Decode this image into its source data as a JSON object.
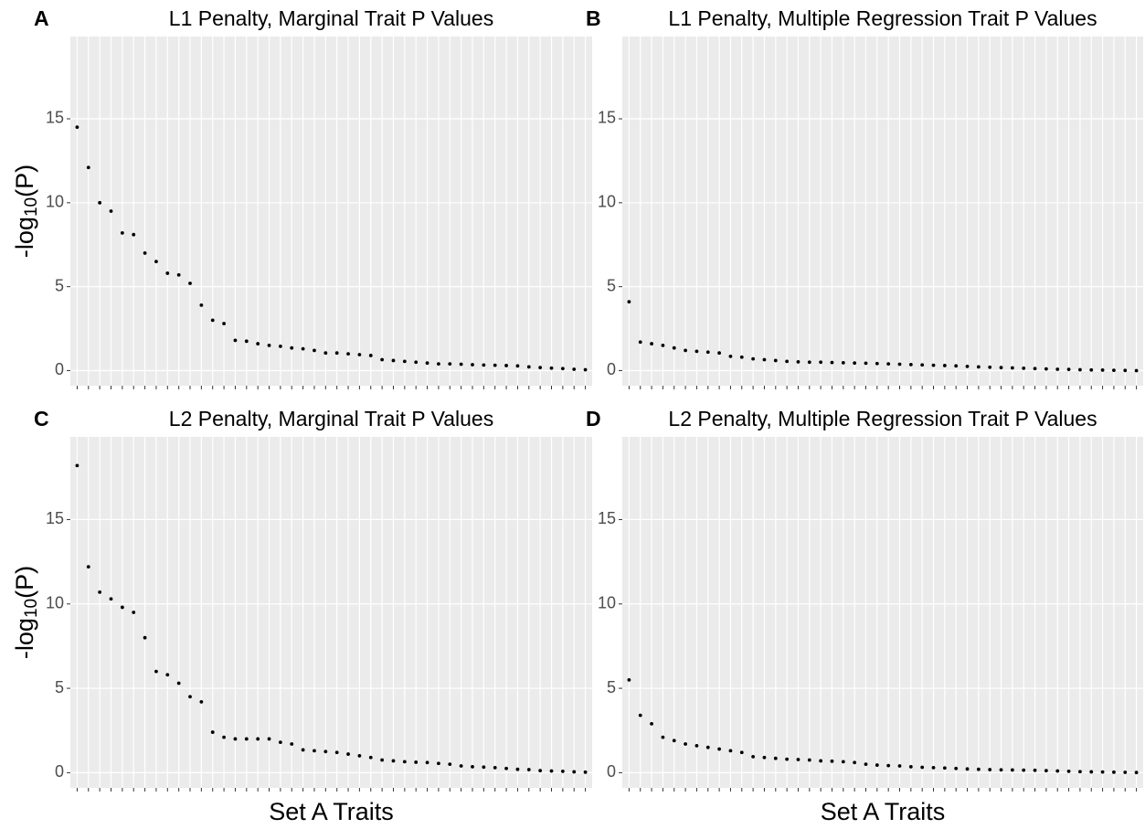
{
  "chart_data": [
    {
      "type": "scatter",
      "tag": "A",
      "title": "L1 Penalty, Marginal Trait P Values",
      "y_label": "-log10(P)",
      "categories": [
        null,
        null,
        null,
        null,
        null,
        null,
        null,
        null,
        null,
        null,
        null,
        null,
        null,
        null,
        null,
        null,
        null,
        null,
        null,
        null,
        null,
        null,
        null,
        null,
        null,
        null,
        null,
        null,
        null,
        null,
        null,
        null,
        null,
        null,
        null,
        null,
        null,
        null,
        null,
        null,
        null,
        null,
        null,
        null,
        null,
        null
      ],
      "values": [
        14.5,
        12.1,
        10.0,
        9.5,
        8.2,
        8.1,
        7.0,
        6.5,
        5.8,
        5.7,
        5.2,
        3.9,
        3.0,
        2.8,
        1.8,
        1.75,
        1.6,
        1.5,
        1.45,
        1.35,
        1.3,
        1.2,
        1.05,
        1.05,
        1.0,
        0.95,
        0.9,
        0.65,
        0.6,
        0.55,
        0.5,
        0.45,
        0.4,
        0.4,
        0.38,
        0.35,
        0.33,
        0.32,
        0.3,
        0.28,
        0.22,
        0.18,
        0.15,
        0.12,
        0.08,
        0.05
      ],
      "color": "#000000",
      "ylim": [
        -0.9,
        19.9
      ],
      "yticks": [
        0,
        5,
        10,
        15
      ],
      "grid": true
    },
    {
      "type": "scatter",
      "tag": "B",
      "title": "L1 Penalty, Multiple Regression Trait P Values",
      "categories": [
        null,
        null,
        null,
        null,
        null,
        null,
        null,
        null,
        null,
        null,
        null,
        null,
        null,
        null,
        null,
        null,
        null,
        null,
        null,
        null,
        null,
        null,
        null,
        null,
        null,
        null,
        null,
        null,
        null,
        null,
        null,
        null,
        null,
        null,
        null,
        null,
        null,
        null,
        null,
        null,
        null,
        null,
        null,
        null,
        null,
        null
      ],
      "values": [
        4.1,
        1.7,
        1.6,
        1.5,
        1.35,
        1.2,
        1.15,
        1.1,
        1.05,
        0.85,
        0.8,
        0.7,
        0.65,
        0.6,
        0.55,
        0.52,
        0.5,
        0.5,
        0.48,
        0.47,
        0.45,
        0.44,
        0.42,
        0.4,
        0.38,
        0.36,
        0.34,
        0.32,
        0.3,
        0.28,
        0.25,
        0.22,
        0.2,
        0.18,
        0.16,
        0.14,
        0.12,
        0.1,
        0.08,
        0.07,
        0.05,
        0.04,
        0.03,
        0.02,
        0.01,
        0.0
      ],
      "color": "#000000",
      "ylim": [
        -0.9,
        19.9
      ],
      "yticks": [
        0,
        5,
        10,
        15
      ],
      "grid": true
    },
    {
      "type": "scatter",
      "tag": "C",
      "title": "L2 Penalty, Marginal Trait P Values",
      "y_label": "-log10(P)",
      "x_label": "Set A Traits",
      "categories": [
        null,
        null,
        null,
        null,
        null,
        null,
        null,
        null,
        null,
        null,
        null,
        null,
        null,
        null,
        null,
        null,
        null,
        null,
        null,
        null,
        null,
        null,
        null,
        null,
        null,
        null,
        null,
        null,
        null,
        null,
        null,
        null,
        null,
        null,
        null,
        null,
        null,
        null,
        null,
        null,
        null,
        null,
        null,
        null,
        null,
        null
      ],
      "values": [
        18.2,
        12.2,
        10.7,
        10.3,
        9.8,
        9.5,
        8.0,
        6.0,
        5.8,
        5.3,
        4.5,
        4.2,
        2.4,
        2.1,
        2.0,
        2.0,
        2.0,
        2.0,
        1.8,
        1.7,
        1.35,
        1.3,
        1.25,
        1.2,
        1.1,
        1.0,
        0.9,
        0.75,
        0.7,
        0.65,
        0.62,
        0.6,
        0.55,
        0.5,
        0.4,
        0.35,
        0.33,
        0.3,
        0.25,
        0.2,
        0.18,
        0.12,
        0.1,
        0.08,
        0.05,
        0.03
      ],
      "color": "#000000",
      "ylim": [
        -0.9,
        19.9
      ],
      "yticks": [
        0,
        5,
        10,
        15
      ],
      "grid": true
    },
    {
      "type": "scatter",
      "tag": "D",
      "title": "L2 Penalty, Multiple Regression Trait P Values",
      "x_label": "Set A Traits",
      "categories": [
        null,
        null,
        null,
        null,
        null,
        null,
        null,
        null,
        null,
        null,
        null,
        null,
        null,
        null,
        null,
        null,
        null,
        null,
        null,
        null,
        null,
        null,
        null,
        null,
        null,
        null,
        null,
        null,
        null,
        null,
        null,
        null,
        null,
        null,
        null,
        null,
        null,
        null,
        null,
        null,
        null,
        null,
        null,
        null,
        null,
        null
      ],
      "values": [
        5.5,
        3.4,
        2.9,
        2.1,
        1.9,
        1.7,
        1.6,
        1.5,
        1.4,
        1.3,
        1.2,
        0.95,
        0.9,
        0.85,
        0.8,
        0.78,
        0.75,
        0.7,
        0.68,
        0.65,
        0.6,
        0.5,
        0.45,
        0.42,
        0.4,
        0.35,
        0.32,
        0.3,
        0.28,
        0.25,
        0.22,
        0.2,
        0.18,
        0.17,
        0.16,
        0.15,
        0.14,
        0.12,
        0.1,
        0.08,
        0.06,
        0.05,
        0.04,
        0.03,
        0.02,
        0.01
      ],
      "color": "#000000",
      "ylim": [
        -0.9,
        19.9
      ],
      "yticks": [
        0,
        5,
        10,
        15
      ],
      "grid": true
    }
  ]
}
